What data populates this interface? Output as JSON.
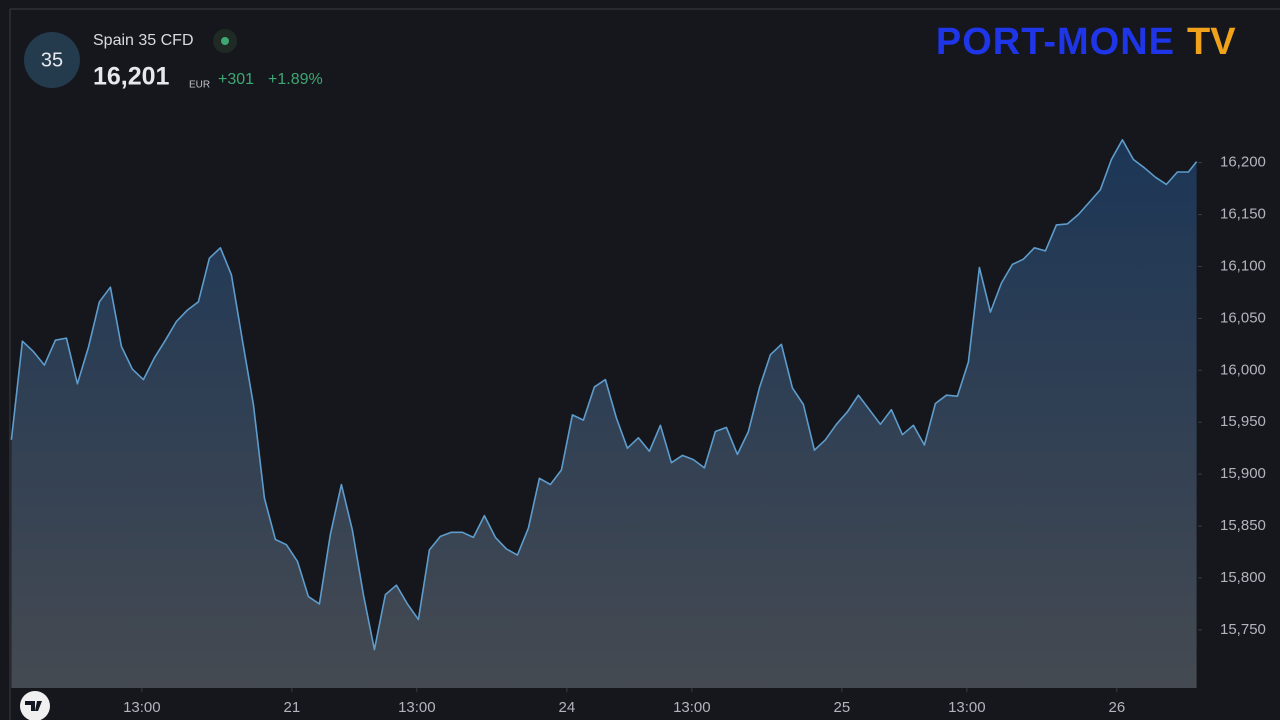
{
  "chart_data": {
    "type": "area",
    "symbol": "35",
    "title": "Spain 35 CFD",
    "price": "16,201",
    "currency": "EUR",
    "change": "+301",
    "change_pct": "+1.89%",
    "logo": {
      "text": "PORT-MONE",
      "suffix": "TV"
    },
    "color": "#5e9ccc",
    "fill_top": "#1c3656",
    "fill_bottom": "#454a52",
    "grid": false,
    "x": [
      -0.02,
      0.02,
      0.06,
      0.1,
      0.14,
      0.18,
      0.22,
      0.26,
      0.3,
      0.34,
      0.38,
      0.42,
      0.46,
      0.5,
      0.54,
      0.58,
      0.62,
      0.66,
      0.7,
      0.74,
      0.78,
      0.82,
      0.86,
      0.9,
      0.94,
      0.98,
      1.02,
      1.06,
      1.1,
      1.14,
      1.18,
      1.22,
      1.26,
      1.3,
      1.34,
      1.38,
      1.42,
      1.46,
      1.5,
      1.54,
      1.58,
      1.62,
      1.66,
      1.7,
      1.74,
      1.78,
      1.82,
      1.86,
      1.9,
      1.94,
      1.98,
      2.02,
      2.06,
      2.1,
      2.14,
      2.18,
      2.22,
      2.26,
      2.3,
      2.34,
      2.38,
      2.42,
      2.46,
      2.5,
      2.54,
      2.58,
      2.62,
      2.66,
      2.7,
      2.74,
      2.78,
      2.82,
      2.86,
      2.9,
      2.94,
      2.98,
      3.02,
      3.06,
      3.1,
      3.14,
      3.18,
      3.22,
      3.26,
      3.3,
      3.34,
      3.38,
      3.42,
      3.46,
      3.5,
      3.54,
      3.58,
      3.62,
      3.66,
      3.7,
      3.74,
      3.78,
      3.82,
      3.86,
      3.9,
      3.94,
      3.98,
      4.02,
      4.06,
      4.1,
      4.14,
      4.18,
      4.22,
      4.26,
      4.29
    ],
    "values": [
      15933,
      16028,
      16018,
      16005,
      16029,
      16031,
      15987,
      16022,
      16066,
      16080,
      16023,
      16001,
      15991,
      16012,
      16029,
      16047,
      16058,
      16066,
      16108,
      16118,
      16092,
      16029,
      15967,
      15877,
      15837,
      15832,
      15816,
      15782,
      15775,
      15842,
      15890,
      15846,
      15784,
      15731,
      15784,
      15793,
      15775,
      15760,
      15827,
      15840,
      15844,
      15844,
      15839,
      15860,
      15839,
      15828,
      15822,
      15848,
      15896,
      15890,
      15904,
      15957,
      15952,
      15984,
      15991,
      15954,
      15925,
      15935,
      15922,
      15947,
      15911,
      15918,
      15914,
      15906,
      15941,
      15945,
      15919,
      15941,
      15983,
      16015,
      16025,
      15983,
      15967,
      15923,
      15933,
      15948,
      15960,
      15976,
      15962,
      15948,
      15962,
      15938,
      15947,
      15928,
      15968,
      15976,
      15975,
      16008,
      16099,
      16056,
      16084,
      16102,
      16107,
      16118,
      16115,
      16140,
      16141,
      16150,
      16162,
      16174,
      16203,
      16222,
      16203,
      16195,
      16186,
      16179,
      16191,
      16191,
      16201
    ],
    "xlim": [
      -0.025,
      4.295
    ],
    "xticks": [
      {
        "value": 0.4545,
        "label": "13:00"
      },
      {
        "value": 1,
        "label": "21"
      },
      {
        "value": 1.4545,
        "label": "13:00"
      },
      {
        "value": 2,
        "label": "24"
      },
      {
        "value": 2.4545,
        "label": "13:00"
      },
      {
        "value": 3,
        "label": "25"
      },
      {
        "value": 3.4545,
        "label": "13:00"
      },
      {
        "value": 4,
        "label": "26"
      }
    ],
    "ylim": [
      15694,
      16347
    ],
    "yticks": [
      {
        "value": 15750,
        "label": "15,750"
      },
      {
        "value": 15800,
        "label": "15,800"
      },
      {
        "value": 15850,
        "label": "15,850"
      },
      {
        "value": 15900,
        "label": "15,900"
      },
      {
        "value": 15950,
        "label": "15,950"
      },
      {
        "value": 16000,
        "label": "16,000"
      },
      {
        "value": 16050,
        "label": "16,050"
      },
      {
        "value": 16100,
        "label": "16,100"
      },
      {
        "value": 16150,
        "label": "16,150"
      },
      {
        "value": 16200,
        "label": "16,200"
      }
    ]
  }
}
